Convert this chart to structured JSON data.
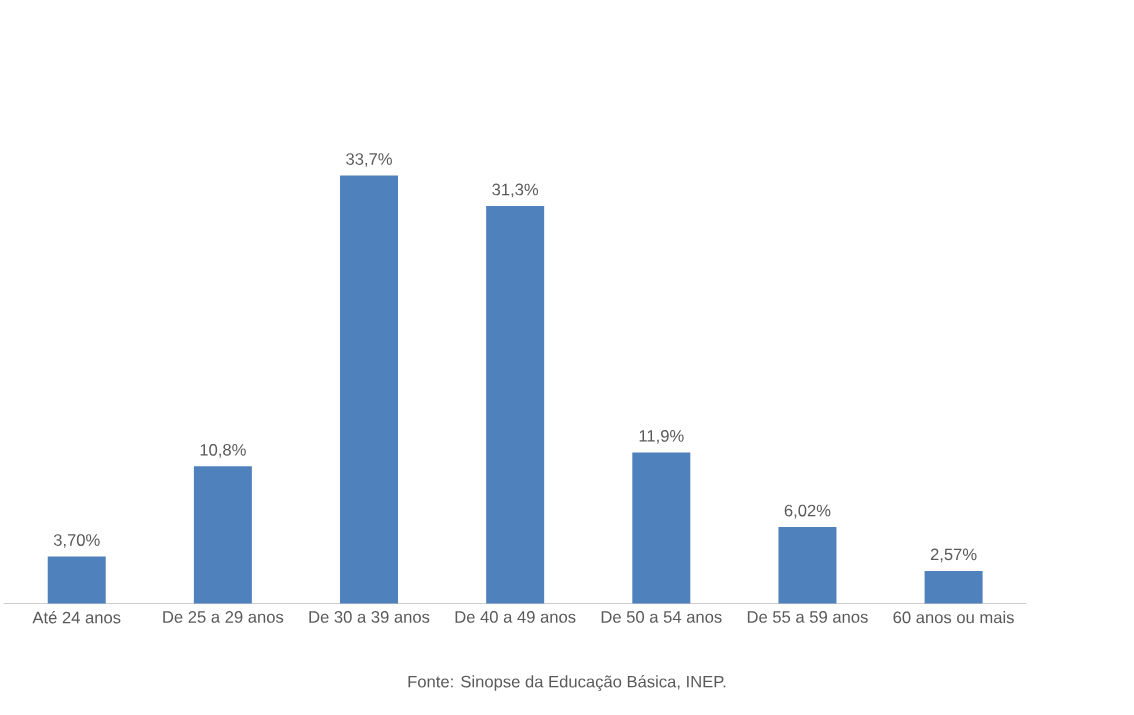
{
  "chart_data": {
    "type": "bar",
    "categories": [
      "Até 24 anos",
      "De 25 a 29 anos",
      "De 30 a 39 anos",
      "De 40 a 49 anos",
      "De 50 a 54 anos",
      "De 55 a 59 anos",
      "60 anos ou mais"
    ],
    "values": [
      3.7,
      10.8,
      33.7,
      31.3,
      11.9,
      6.02,
      2.57
    ],
    "value_labels": [
      "3,70%",
      "10,8%",
      "33,7%",
      "31,3%",
      "11,9%",
      "6,02%",
      "2,57%"
    ],
    "color": "#4f81bd",
    "annotations": [
      "Fonte: Sinopse da Educação Básica, INEP."
    ]
  }
}
